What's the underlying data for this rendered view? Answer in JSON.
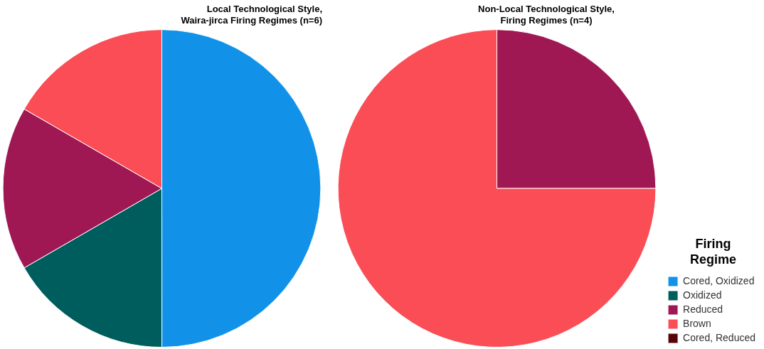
{
  "chart_data": [
    {
      "type": "pie",
      "title": "Local Technological Style,\nWaira-jirca Firing Regimes (n=6)",
      "categories": [
        null,
        null,
        null,
        null
      ],
      "values": [
        50,
        16.67,
        16.67,
        16.67
      ],
      "colors": [
        "#1192e8",
        "#005d5d",
        "#9f1853",
        "#fa4d56"
      ],
      "legend": false
    },
    {
      "type": "pie",
      "title": "Non-Local Technological Style,\nFiring Regimes (n=4)",
      "legend_title": "Firing\nRegime",
      "categories": [
        "Cored, Oxidized",
        "Oxidized",
        "Reduced",
        "Brown",
        "Cored, Reduced"
      ],
      "values": [
        0,
        0,
        25,
        75,
        0
      ],
      "colors": [
        "#1192e8",
        "#005d5d",
        "#9f1853",
        "#fa4d56",
        "#570408"
      ],
      "legend": "right"
    }
  ]
}
